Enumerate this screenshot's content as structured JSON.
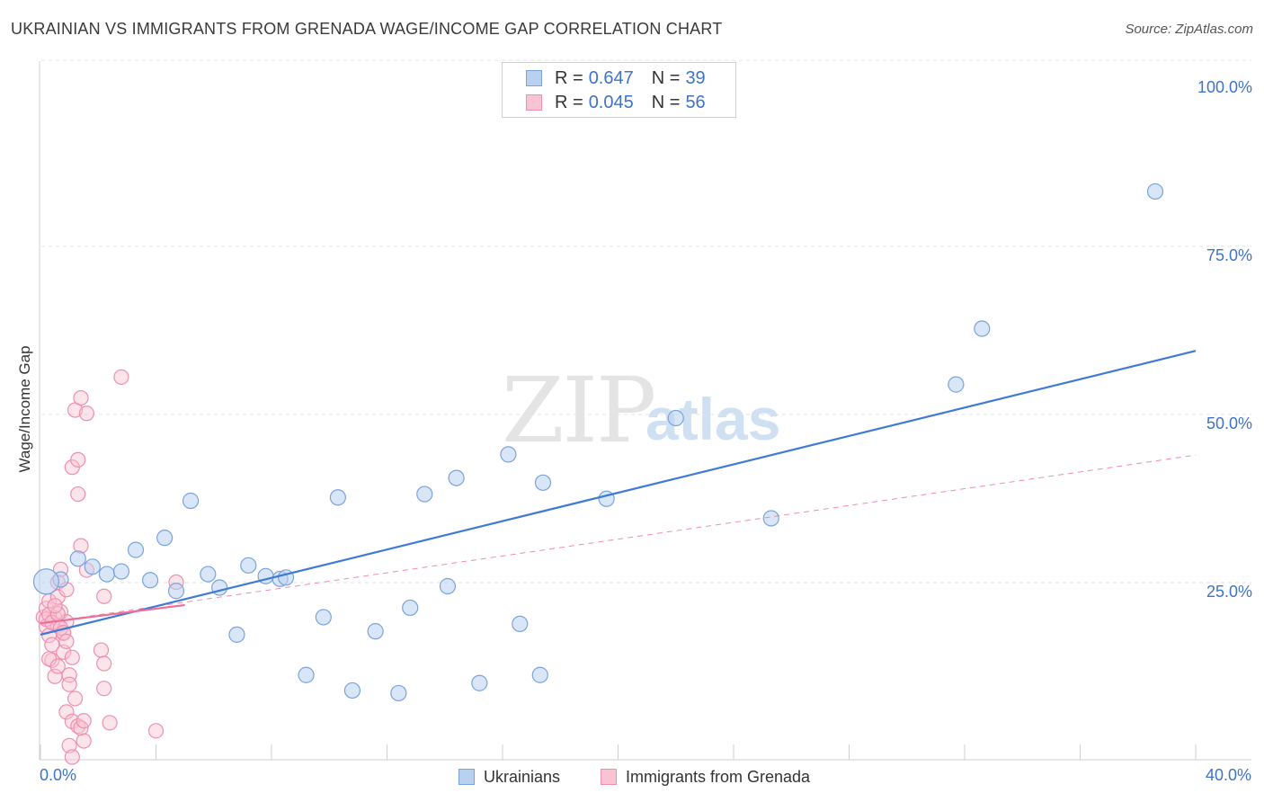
{
  "title": "UKRAINIAN VS IMMIGRANTS FROM GRENADA WAGE/INCOME GAP CORRELATION CHART",
  "source": "Source: ZipAtlas.com",
  "watermark": {
    "part1": "ZIP",
    "part2": "atlas"
  },
  "legend": {
    "r_label": "R =",
    "n_label": "N =",
    "rows": [
      {
        "r": "0.647",
        "n": "39",
        "fill": "#b9d1f1",
        "stroke": "#7aa3dc"
      },
      {
        "r": "0.045",
        "n": "56",
        "fill": "#f9c3d3",
        "stroke": "#ee8fae"
      }
    ]
  },
  "bottom_legend": [
    {
      "label": "Ukrainians",
      "fill": "#b9d1f1",
      "stroke": "#7aa3dc"
    },
    {
      "label": "Immigrants from Grenada",
      "fill": "#f9c3d3",
      "stroke": "#ee8fae"
    }
  ],
  "chart_data": {
    "type": "scatter",
    "title": "UKRAINIAN VS IMMIGRANTS FROM GRENADA WAGE/INCOME GAP CORRELATION CHART",
    "xlabel": "",
    "ylabel": "Wage/Income Gap",
    "xlim": [
      0,
      40
    ],
    "ylim": [
      0,
      100
    ],
    "x_tick_labels": [
      "0.0%",
      "40.0%"
    ],
    "y_ticks": [
      25,
      50,
      75,
      100
    ],
    "y_tick_labels": [
      "25.0%",
      "50.0%",
      "75.0%",
      "100.0%"
    ],
    "grid": true,
    "colors": {
      "blue": "#3f7bd4",
      "pink": "#e8709a",
      "tick_text": "#3f73c6"
    },
    "series": [
      {
        "name": "Ukrainians",
        "points": [
          [
            0.7,
            26.8
          ],
          [
            1.3,
            29.9
          ],
          [
            1.8,
            28.7
          ],
          [
            2.3,
            27.6
          ],
          [
            2.8,
            28.0
          ],
          [
            3.3,
            31.2
          ],
          [
            3.8,
            26.7
          ],
          [
            4.3,
            33.0
          ],
          [
            4.7,
            25.1
          ],
          [
            5.2,
            38.5
          ],
          [
            5.8,
            27.6
          ],
          [
            6.2,
            25.6
          ],
          [
            6.8,
            18.6
          ],
          [
            7.2,
            28.9
          ],
          [
            7.8,
            27.3
          ],
          [
            8.3,
            26.9
          ],
          [
            8.5,
            27.1
          ],
          [
            9.2,
            12.6
          ],
          [
            9.8,
            21.2
          ],
          [
            10.3,
            39.0
          ],
          [
            10.8,
            10.3
          ],
          [
            11.6,
            19.1
          ],
          [
            12.4,
            9.9
          ],
          [
            12.8,
            22.6
          ],
          [
            13.3,
            39.5
          ],
          [
            14.1,
            25.8
          ],
          [
            14.4,
            41.9
          ],
          [
            15.2,
            11.4
          ],
          [
            16.2,
            45.4
          ],
          [
            16.6,
            20.2
          ],
          [
            17.3,
            12.6
          ],
          [
            17.4,
            41.2
          ],
          [
            19.6,
            38.8
          ],
          [
            22.0,
            50.8
          ],
          [
            25.3,
            35.9
          ],
          [
            31.7,
            55.8
          ],
          [
            32.6,
            64.1
          ],
          [
            38.6,
            84.5
          ],
          [
            0.2,
            26.5
          ]
        ],
        "trend": {
          "x": [
            0,
            40
          ],
          "y": [
            18.6,
            60.8
          ]
        }
      },
      {
        "name": "Immigrants from Grenada",
        "points": [
          [
            0.1,
            21.2
          ],
          [
            0.2,
            22.5
          ],
          [
            0.2,
            19.8
          ],
          [
            0.3,
            18.5
          ],
          [
            0.3,
            23.6
          ],
          [
            0.4,
            17.1
          ],
          [
            0.4,
            14.8
          ],
          [
            0.5,
            21.1
          ],
          [
            0.5,
            12.4
          ],
          [
            0.6,
            26.4
          ],
          [
            0.6,
            24.2
          ],
          [
            0.6,
            19.9
          ],
          [
            0.7,
            28.3
          ],
          [
            0.7,
            22.0
          ],
          [
            0.8,
            18.8
          ],
          [
            0.8,
            16.0
          ],
          [
            0.9,
            25.3
          ],
          [
            0.9,
            20.5
          ],
          [
            0.9,
            7.1
          ],
          [
            1.0,
            12.6
          ],
          [
            1.0,
            11.2
          ],
          [
            1.0,
            2.1
          ],
          [
            1.1,
            43.5
          ],
          [
            1.1,
            15.2
          ],
          [
            1.1,
            5.7
          ],
          [
            1.1,
            0.4
          ],
          [
            1.2,
            52.0
          ],
          [
            1.2,
            9.1
          ],
          [
            1.3,
            39.5
          ],
          [
            1.3,
            44.6
          ],
          [
            1.3,
            5.0
          ],
          [
            1.4,
            53.8
          ],
          [
            1.4,
            31.8
          ],
          [
            1.4,
            4.7
          ],
          [
            1.5,
            5.8
          ],
          [
            1.5,
            2.8
          ],
          [
            1.6,
            51.5
          ],
          [
            1.6,
            28.2
          ],
          [
            2.1,
            16.3
          ],
          [
            2.2,
            14.3
          ],
          [
            2.2,
            10.6
          ],
          [
            2.2,
            24.3
          ],
          [
            2.4,
            5.5
          ],
          [
            2.8,
            56.9
          ],
          [
            4.0,
            4.3
          ],
          [
            4.7,
            26.4
          ],
          [
            0.2,
            20.9
          ],
          [
            0.3,
            21.6
          ],
          [
            0.4,
            20.4
          ],
          [
            0.6,
            21.7
          ],
          [
            0.7,
            19.6
          ],
          [
            0.8,
            18.9
          ],
          [
            0.5,
            22.9
          ],
          [
            0.9,
            17.6
          ],
          [
            0.3,
            15.0
          ],
          [
            0.6,
            13.9
          ]
        ],
        "trend_solid": {
          "x": [
            0,
            5
          ],
          "y": [
            20.3,
            23.0
          ]
        },
        "trend_dashed": {
          "x": [
            0,
            40
          ],
          "y": [
            20.3,
            45.3
          ]
        }
      }
    ]
  }
}
